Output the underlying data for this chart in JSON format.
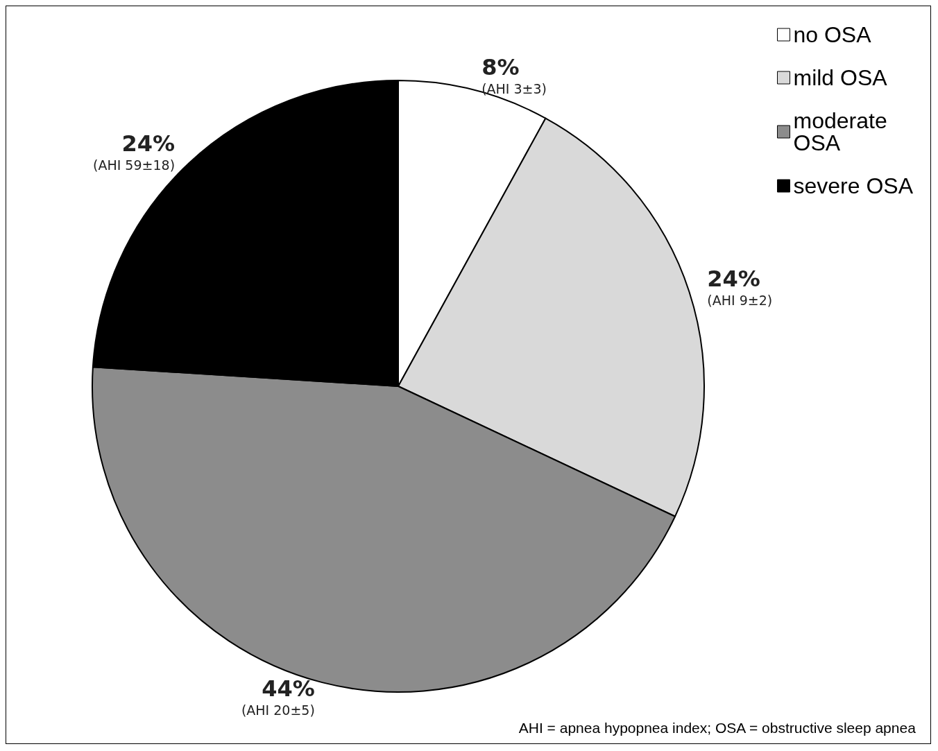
{
  "chart_data": {
    "type": "pie",
    "categories": [
      "no OSA",
      "mild OSA",
      "moderate OSA",
      "severe OSA"
    ],
    "values": [
      8,
      24,
      44,
      24
    ],
    "colors": [
      "#ffffff",
      "#d9d9d9",
      "#8c8c8c",
      "#000000"
    ],
    "value_labels": [
      "8%\n(AHI 3±3)",
      "24%\n(AHI 9±2)",
      "44%\n(AHI 20±5)",
      "24%\n(AHI 59±18)"
    ],
    "legend": "top right",
    "annotations": [
      "AHI = apnea hypopnea index; OSA = obstructive sleep apnea"
    ]
  }
}
